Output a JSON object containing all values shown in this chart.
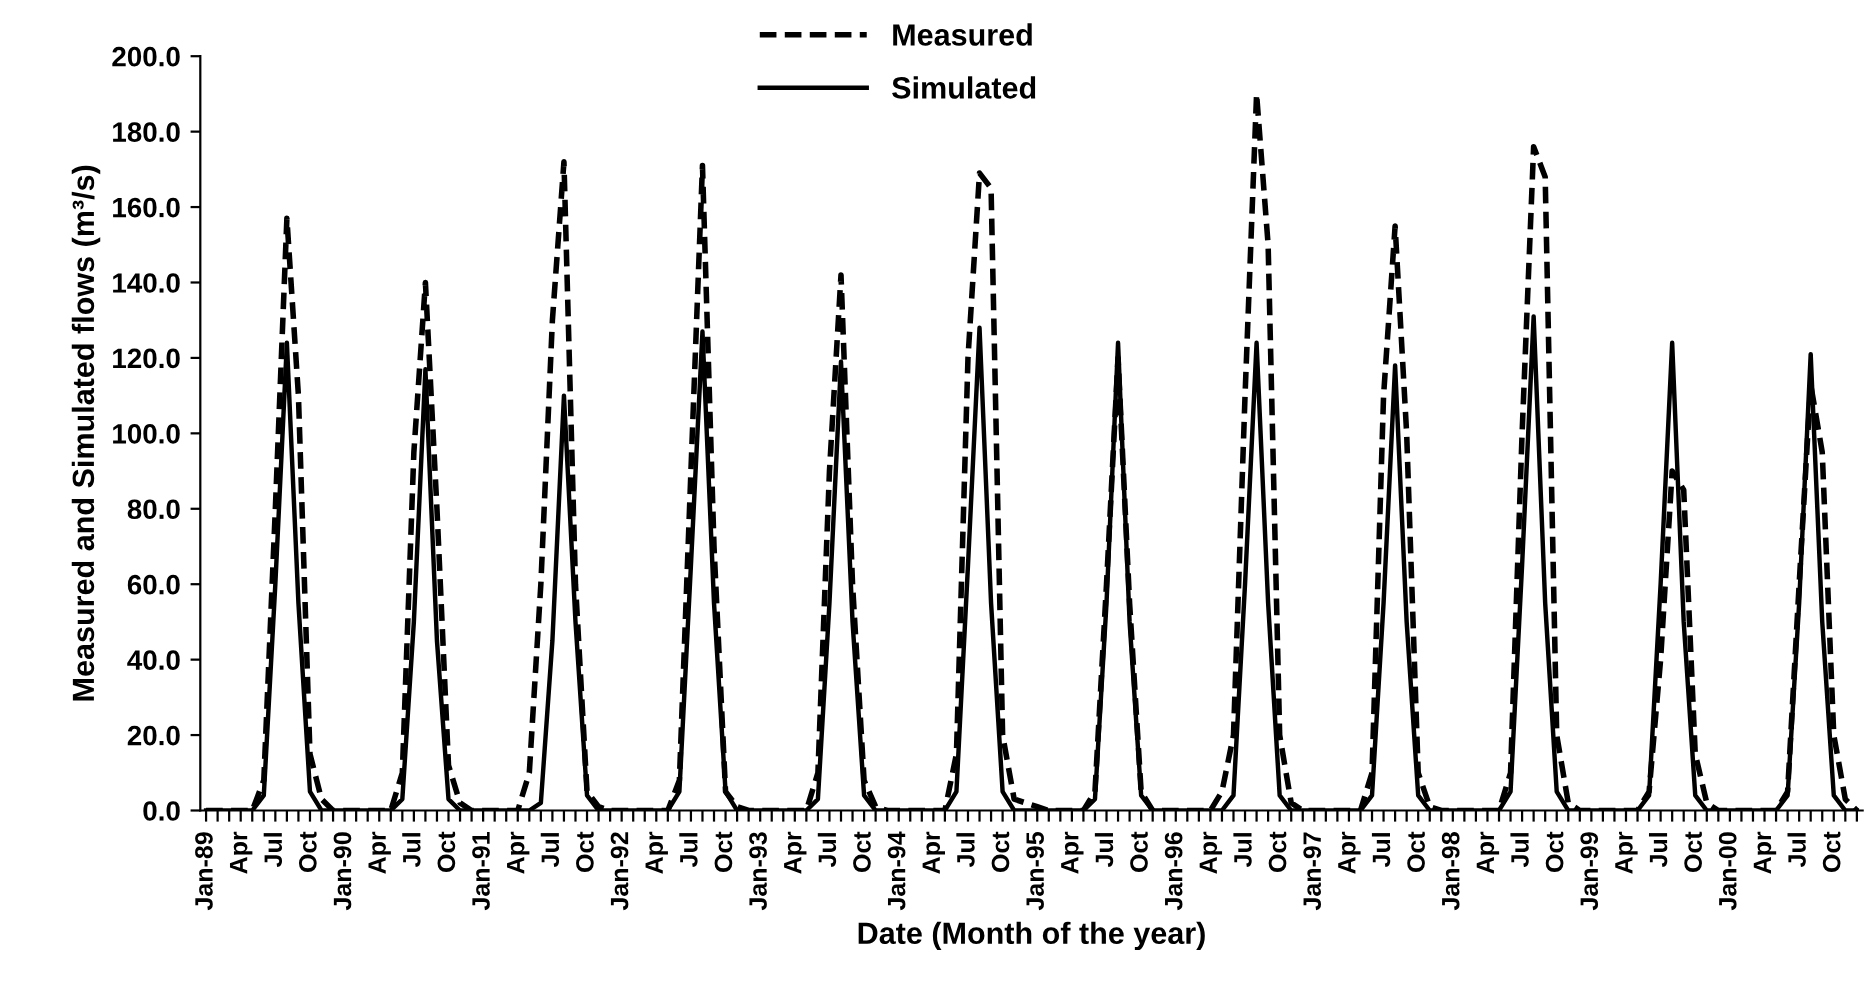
{
  "chart_data": {
    "type": "line",
    "xlabel": "Date (Month of the year)",
    "ylabel": "Measured and Simulated flows (m³/s)",
    "categories": [
      "Jan-89",
      null,
      null,
      "Apr",
      null,
      null,
      "Jul",
      null,
      null,
      "Oct",
      null,
      null,
      "Jan-90",
      null,
      null,
      "Apr",
      null,
      null,
      "Jul",
      null,
      null,
      "Oct",
      null,
      null,
      "Jan-91",
      null,
      null,
      "Apr",
      null,
      null,
      "Jul",
      null,
      null,
      "Oct",
      null,
      null,
      "Jan-92",
      null,
      null,
      "Apr",
      null,
      null,
      "Jul",
      null,
      null,
      "Oct",
      null,
      null,
      "Jan-93",
      null,
      null,
      "Apr",
      null,
      null,
      "Jul",
      null,
      null,
      "Oct",
      null,
      null,
      "Jan-94",
      null,
      null,
      "Apr",
      null,
      null,
      "Jul",
      null,
      null,
      "Oct",
      null,
      null,
      "Jan-95",
      null,
      null,
      "Apr",
      null,
      null,
      "Jul",
      null,
      null,
      "Oct",
      null,
      null,
      "Jan-96",
      null,
      null,
      "Apr",
      null,
      null,
      "Jul",
      null,
      null,
      "Oct",
      null,
      null,
      "Jan-97",
      null,
      null,
      "Apr",
      null,
      null,
      "Jul",
      null,
      null,
      "Oct",
      null,
      null,
      "Jan-98",
      null,
      null,
      "Apr",
      null,
      null,
      "Jul",
      null,
      null,
      "Oct",
      null,
      null,
      "Jan-99",
      null,
      null,
      "Apr",
      null,
      null,
      "Jul",
      null,
      null,
      "Oct",
      null,
      null,
      "Jan-00",
      null,
      null,
      "Apr",
      null,
      null,
      "Jul",
      null,
      null,
      "Oct",
      null,
      null
    ],
    "series": [
      {
        "name": "Measured",
        "color": "#000000",
        "line_style": "dashed",
        "values": [
          0,
          0,
          0,
          0,
          0,
          8,
          80,
          157,
          110,
          15,
          3,
          0,
          0,
          0,
          0,
          0,
          0,
          10,
          95,
          140,
          80,
          12,
          2,
          0,
          0,
          0,
          0,
          0,
          10,
          60,
          130,
          172,
          60,
          5,
          1,
          0,
          0,
          0,
          0,
          0,
          0,
          8,
          90,
          171,
          70,
          5,
          1,
          0,
          0,
          0,
          0,
          0,
          0,
          10,
          90,
          142,
          60,
          8,
          1,
          0,
          0,
          0,
          0,
          0,
          0,
          15,
          120,
          169,
          165,
          20,
          3,
          2,
          1,
          0,
          0,
          0,
          0,
          5,
          60,
          120,
          55,
          5,
          0,
          0,
          0,
          0,
          0,
          0,
          5,
          20,
          110,
          190,
          150,
          20,
          2,
          0,
          0,
          0,
          0,
          0,
          0,
          10,
          110,
          155,
          100,
          10,
          1,
          0,
          0,
          0,
          0,
          0,
          0,
          10,
          100,
          176,
          168,
          20,
          2,
          0,
          0,
          0,
          0,
          0,
          0,
          5,
          40,
          90,
          85,
          15,
          2,
          0,
          0,
          0,
          0,
          0,
          0,
          5,
          60,
          113,
          95,
          20,
          3,
          0
        ]
      },
      {
        "name": "Simulated",
        "color": "#000000",
        "line_style": "solid",
        "values": [
          0,
          0,
          0,
          0,
          0,
          4,
          60,
          124,
          55,
          5,
          0,
          0,
          0,
          0,
          0,
          0,
          0,
          3,
          50,
          117,
          45,
          3,
          0,
          0,
          0,
          0,
          0,
          0,
          0,
          2,
          45,
          110,
          50,
          4,
          0,
          0,
          0,
          0,
          0,
          0,
          0,
          5,
          65,
          127,
          55,
          5,
          0,
          0,
          0,
          0,
          0,
          0,
          0,
          3,
          55,
          119,
          50,
          4,
          0,
          0,
          0,
          0,
          0,
          0,
          0,
          5,
          65,
          128,
          55,
          5,
          0,
          0,
          0,
          0,
          0,
          0,
          0,
          3,
          55,
          124,
          50,
          4,
          0,
          0,
          0,
          0,
          0,
          0,
          0,
          4,
          60,
          124,
          55,
          4,
          0,
          0,
          0,
          0,
          0,
          0,
          0,
          4,
          55,
          118,
          50,
          4,
          0,
          0,
          0,
          0,
          0,
          0,
          0,
          5,
          65,
          131,
          55,
          5,
          0,
          0,
          0,
          0,
          0,
          0,
          0,
          4,
          60,
          124,
          50,
          4,
          0,
          0,
          0,
          0,
          0,
          0,
          0,
          4,
          55,
          121,
          50,
          4,
          0,
          0
        ]
      }
    ],
    "ylim": [
      0,
      200
    ],
    "yticks": [
      {
        "value": 0,
        "label": "0.0"
      },
      {
        "value": 20,
        "label": "20.0"
      },
      {
        "value": 40,
        "label": "40.0"
      },
      {
        "value": 60,
        "label": "60.0"
      },
      {
        "value": 80,
        "label": "80.0"
      },
      {
        "value": 100,
        "label": "100.0"
      },
      {
        "value": 120,
        "label": "120.0"
      },
      {
        "value": 140,
        "label": "140.0"
      },
      {
        "value": 160,
        "label": "160.0"
      },
      {
        "value": 180,
        "label": "180.0"
      },
      {
        "value": 200,
        "label": "200.0"
      }
    ],
    "grid": false,
    "legend": "top",
    "marker": "none"
  }
}
